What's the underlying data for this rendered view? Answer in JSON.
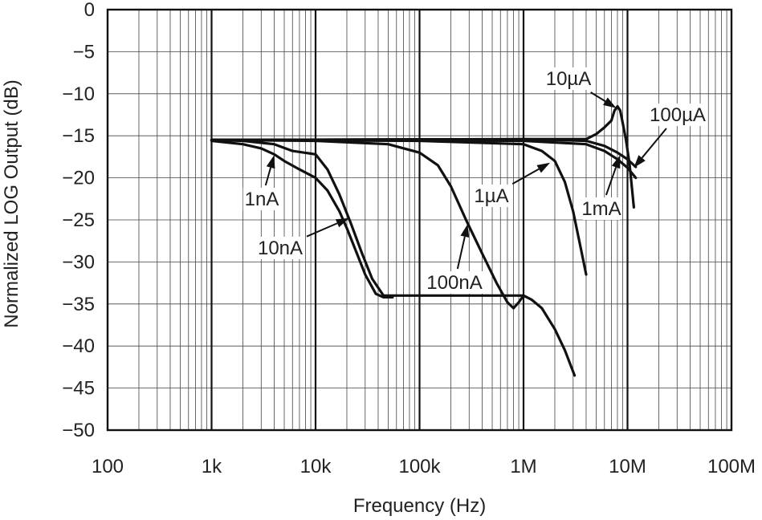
{
  "chart_data": {
    "type": "line",
    "title": "",
    "xlabel": "Frequency (Hz)",
    "ylabel": "Normalized LOG Output (dB)",
    "xscale": "log",
    "xlim": [
      100,
      100000000
    ],
    "ylim": [
      -50,
      0
    ],
    "grid": true,
    "x_tick_labels": [
      "100",
      "1k",
      "10k",
      "100k",
      "1M",
      "10M",
      "100M"
    ],
    "y_tick_labels": [
      "0",
      "−5",
      "−10",
      "−15",
      "−20",
      "−25",
      "−30",
      "−35",
      "−40",
      "−45",
      "−50"
    ],
    "series": [
      {
        "name": "1nA",
        "x": [
          1000,
          2000,
          3000,
          4000,
          5000,
          7000,
          10000,
          13000,
          17000,
          20000,
          25000,
          30000,
          38000,
          45000,
          55000
        ],
        "y": [
          -15.6,
          -16,
          -16.5,
          -17.2,
          -18,
          -19,
          -20,
          -21.5,
          -24,
          -26,
          -29,
          -31.5,
          -33.8,
          -34.2,
          -34.2
        ]
      },
      {
        "name": "10nA",
        "x": [
          1000,
          2000,
          4000,
          6000,
          10000,
          13000,
          17000,
          22000,
          28000,
          35000,
          45000,
          55000,
          100000,
          300000,
          700000,
          1000000
        ],
        "y": [
          -15.5,
          -15.6,
          -16,
          -16.8,
          -17.2,
          -19,
          -22,
          -25.5,
          -29,
          -32,
          -34,
          -34,
          -34,
          -34,
          -34,
          -34
        ]
      },
      {
        "name": "100nA",
        "x": [
          1000,
          10000,
          50000,
          100000,
          150000,
          200000,
          280000,
          400000,
          550000,
          700000,
          800000,
          900000,
          1000000,
          1200000,
          1500000,
          2000000,
          2500000,
          3100000
        ],
        "y": [
          -15.5,
          -15.6,
          -16,
          -17,
          -18.5,
          -21,
          -25,
          -29,
          -32.5,
          -34.8,
          -35.5,
          -34.8,
          -34,
          -34.5,
          -35.5,
          -38,
          -40.5,
          -43.5
        ]
      },
      {
        "name": "1µA",
        "x": [
          1000,
          100000,
          1000000,
          1500000,
          2000000,
          2500000,
          3000000,
          3500000,
          4000000
        ],
        "y": [
          -15.5,
          -15.6,
          -16,
          -16.8,
          -18,
          -20.5,
          -24,
          -28,
          -31.5
        ]
      },
      {
        "name": "10µA",
        "x": [
          1000,
          1000000,
          4000000,
          5000000,
          6000000,
          7000000,
          7500000,
          8000000,
          8500000,
          9000000,
          9700000,
          10500000,
          11500000
        ],
        "y": [
          -15.5,
          -15.4,
          -15.4,
          -14.8,
          -14,
          -13.2,
          -12,
          -11.5,
          -12,
          -13.5,
          -15.6,
          -18.5,
          -23.5
        ]
      },
      {
        "name": "100µA",
        "x": [
          1000,
          1000000,
          4000000,
          6000000,
          8000000,
          10000000,
          12000000
        ],
        "y": [
          -15.5,
          -15.4,
          -15.6,
          -16.2,
          -17,
          -17.8,
          -18.7
        ]
      },
      {
        "name": "1mA",
        "x": [
          1000,
          1000000,
          4000000,
          6000000,
          8000000,
          10000000,
          12000000
        ],
        "y": [
          -15.5,
          -15.6,
          -16,
          -16.8,
          -17.8,
          -18.8,
          -20
        ]
      }
    ],
    "annotations": [
      {
        "label": "1nA",
        "arrow_to_x": 4000,
        "arrow_to_y": -17.3
      },
      {
        "label": "10nA",
        "arrow_to_x": 21000,
        "arrow_to_y": -24.8
      },
      {
        "label": "100nA",
        "arrow_to_x": 290000,
        "arrow_to_y": -25.5
      },
      {
        "label": "1µA",
        "arrow_to_x": 1800000,
        "arrow_to_y": -18.2
      },
      {
        "label": "10µA",
        "arrow_to_x": 7800000,
        "arrow_to_y": -11.7
      },
      {
        "label": "100µA",
        "arrow_to_x": 11500000,
        "arrow_to_y": -18.8
      },
      {
        "label": "1mA",
        "arrow_to_x": 8500000,
        "arrow_to_y": -17.3
      }
    ]
  }
}
